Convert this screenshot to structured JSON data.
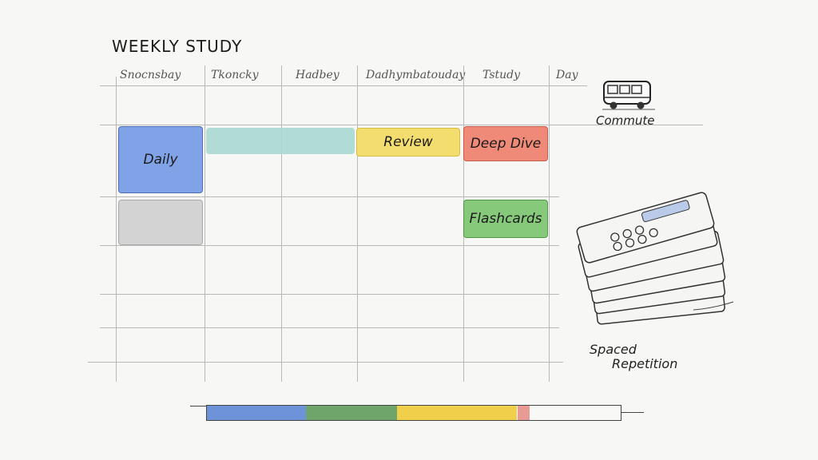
{
  "title": "WEEKLY STUDY",
  "columns": [
    "Snocnsbay",
    "Tkoncky",
    "Hadbey",
    "Dadhymbatouday",
    "Tstudy",
    "Day"
  ],
  "blocks": {
    "daily": "Daily",
    "review": "Review",
    "deep_dive": "Deep Dive",
    "flashcards": "Flashcards"
  },
  "illustrations": {
    "commute_label": "Commute",
    "commute_icon": "bus-icon",
    "spaced_label_line1": "Spaced",
    "spaced_label_line2": "Repetition",
    "cards_icon": "flashcard-stack-icon"
  },
  "colors": {
    "blue": "#7fa3e6",
    "teal": "#9fd3cf",
    "yellow": "#f2dd6e",
    "red": "#f08a78",
    "green": "#86c97a",
    "gray": "#cfcfcf"
  },
  "progress": [
    {
      "color": "#6f93d8",
      "fraction": 0.24
    },
    {
      "color": "#6fa46a",
      "fraction": 0.22
    },
    {
      "color": "#f0cf4a",
      "fraction": 0.29
    },
    {
      "color": "#e79b94",
      "fraction": 0.03
    }
  ]
}
